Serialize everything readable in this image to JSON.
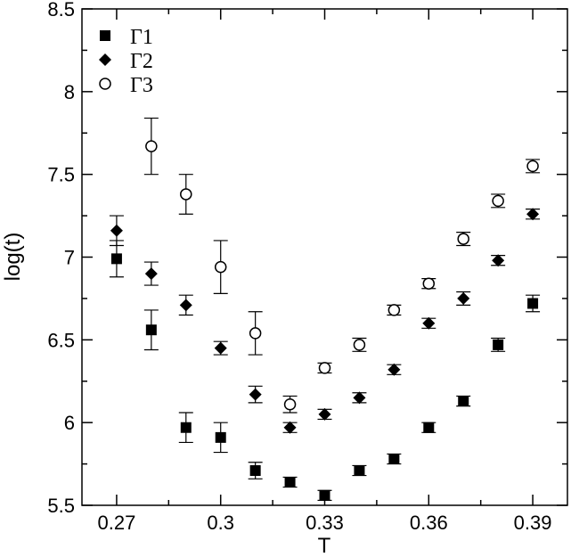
{
  "chart_data": {
    "type": "scatter",
    "xlabel": "T",
    "ylabel": "log(t)",
    "xlim": [
      0.26,
      0.4
    ],
    "ylim": [
      5.5,
      8.5
    ],
    "xticks": [
      0.27,
      0.3,
      0.33,
      0.36,
      0.39
    ],
    "xtick_labels": [
      "0.27",
      "0.3",
      "0.33",
      "0.36",
      "0.39"
    ],
    "yticks": [
      5.5,
      6,
      6.5,
      7,
      7.5,
      8,
      8.5
    ],
    "ytick_labels": [
      "5.5",
      "6",
      "6.5",
      "7",
      "7.5",
      "8",
      "8.5"
    ],
    "grid": false,
    "legend_position": "top-left",
    "series": [
      {
        "name": "Γ1",
        "marker": "filled-square",
        "color": "#000000",
        "x": [
          0.27,
          0.28,
          0.29,
          0.3,
          0.31,
          0.32,
          0.33,
          0.34,
          0.35,
          0.36,
          0.37,
          0.38,
          0.39
        ],
        "y": [
          6.99,
          6.56,
          5.97,
          5.91,
          5.71,
          5.64,
          5.56,
          5.71,
          5.78,
          5.97,
          6.13,
          6.47,
          6.72
        ],
        "err": [
          0.11,
          0.12,
          0.09,
          0.09,
          0.05,
          0.03,
          0.03,
          0.03,
          0.03,
          0.03,
          0.03,
          0.04,
          0.05
        ]
      },
      {
        "name": "Γ2",
        "marker": "filled-diamond",
        "color": "#000000",
        "x": [
          0.27,
          0.28,
          0.29,
          0.3,
          0.31,
          0.32,
          0.33,
          0.34,
          0.35,
          0.36,
          0.37,
          0.38,
          0.39
        ],
        "y": [
          7.16,
          6.9,
          6.71,
          6.45,
          6.17,
          5.97,
          6.05,
          6.15,
          6.32,
          6.6,
          6.75,
          6.98,
          7.26
        ],
        "err": [
          0.09,
          0.07,
          0.06,
          0.04,
          0.05,
          0.03,
          0.03,
          0.03,
          0.03,
          0.03,
          0.04,
          0.03,
          0.03
        ]
      },
      {
        "name": "Γ3",
        "marker": "open-circle",
        "color": "#000000",
        "x": [
          0.28,
          0.29,
          0.3,
          0.31,
          0.32,
          0.33,
          0.34,
          0.35,
          0.36,
          0.37,
          0.38,
          0.39
        ],
        "y": [
          7.67,
          7.38,
          6.94,
          6.54,
          6.11,
          6.33,
          6.47,
          6.68,
          6.84,
          7.11,
          7.34,
          7.55
        ],
        "err": [
          0.17,
          0.12,
          0.16,
          0.13,
          0.05,
          0.03,
          0.04,
          0.03,
          0.03,
          0.04,
          0.04,
          0.04
        ]
      }
    ]
  }
}
